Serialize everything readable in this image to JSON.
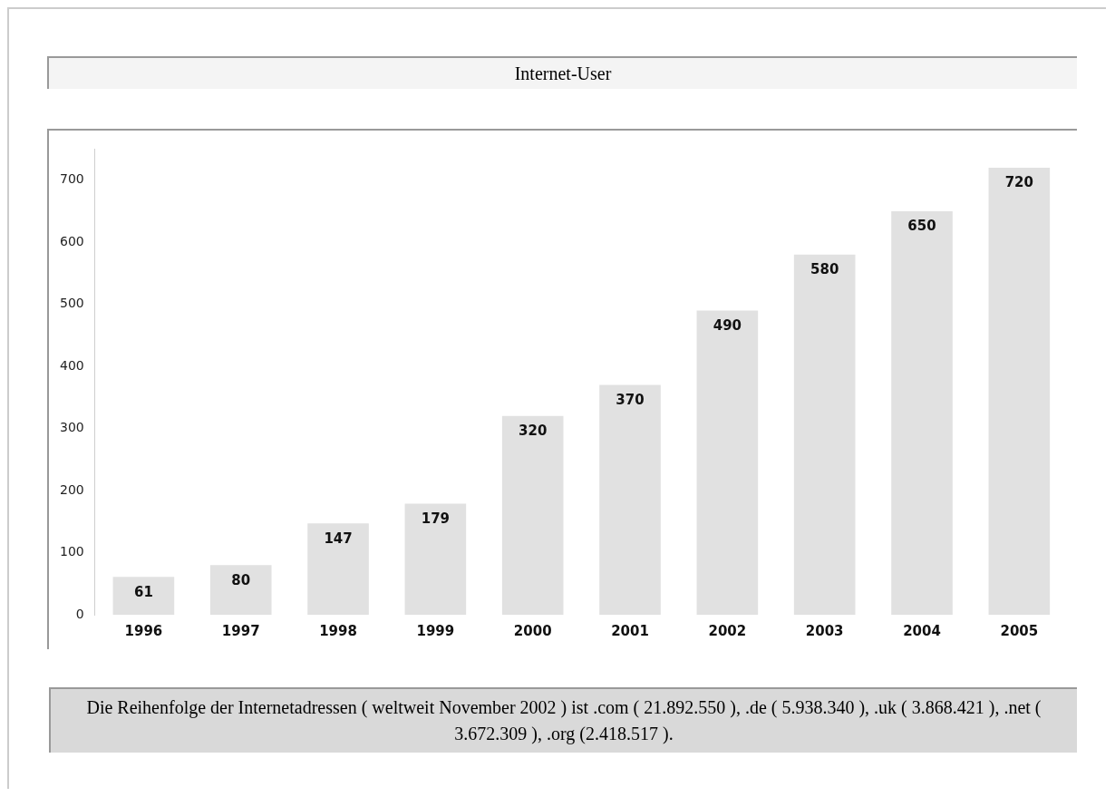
{
  "chart_data": {
    "type": "bar",
    "title": "Internet-User",
    "categories": [
      "1996",
      "1997",
      "1998",
      "1999",
      "2000",
      "2001",
      "2002",
      "2003",
      "2004",
      "2005"
    ],
    "values": [
      61,
      80,
      147,
      179,
      320,
      370,
      490,
      580,
      650,
      720
    ],
    "color": "#e1e1e1",
    "ylim": [
      0,
      750
    ],
    "yticks": [
      0,
      100,
      200,
      300,
      400,
      500,
      600,
      700
    ],
    "data_labels": true,
    "legend": false,
    "grid": false,
    "annotations": [
      "Die Reihenfolge der Internetadressen ( weltweit November 2002 ) ist .com ( 21.892.550 ), .de ( 5.938.340 ), .uk ( 3.868.421 ), .net ( 3.672.309 ), .org (2.418.517 )."
    ]
  }
}
